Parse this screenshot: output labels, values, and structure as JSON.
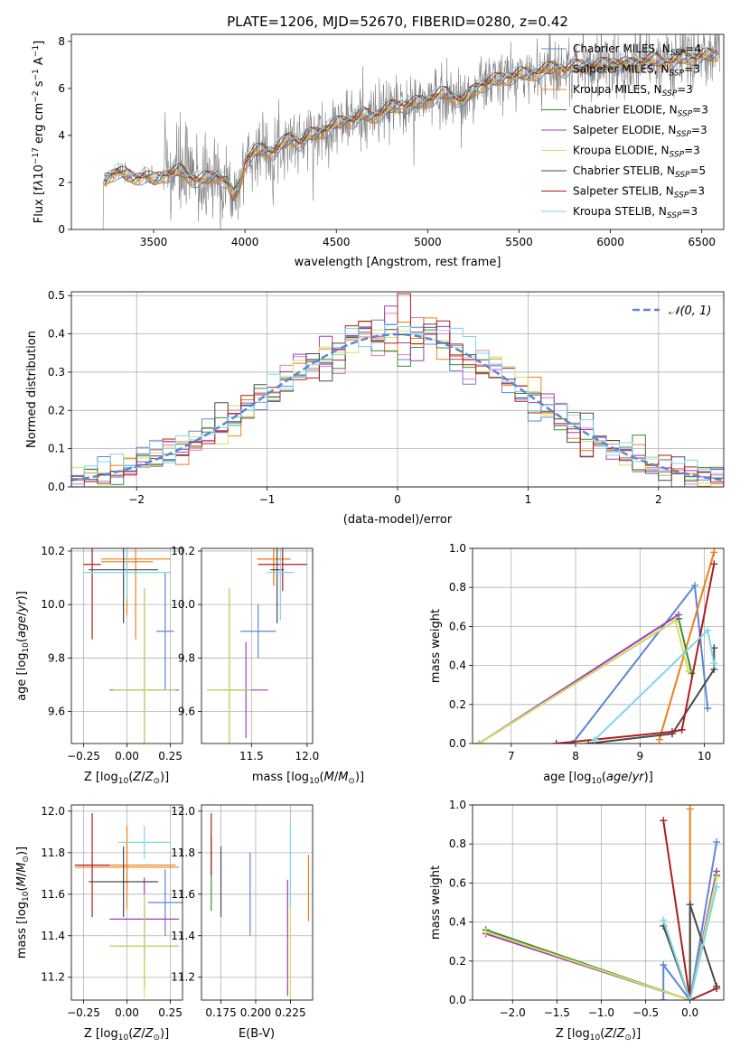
{
  "series_names": [
    "Chabrier MILES",
    "Salpeter MILES",
    "Kroupa MILES",
    "Chabrier ELODIE",
    "Salpeter ELODIE",
    "Kroupa ELODIE",
    "Chabrier STELIB",
    "Salpeter STELIB",
    "Kroupa STELIB"
  ],
  "series_colors": [
    "#5b86d6",
    "#ed7f1a",
    "#ed7f1a",
    "#3e8a3a",
    "#a23db8",
    "#d6e060",
    "#4a4a4a",
    "#b01c1c",
    "#7ad7ea"
  ],
  "chart_data": [
    {
      "id": "spectrum",
      "type": "line",
      "title": "PLATE=1206, MJD=52670, FIBERID=0280, z=0.42",
      "xlabel": "wavelength [Angstrom, rest frame]",
      "ylabel": "Flux [f_λ 10^-17 erg cm^-2 s^-1 A^-1]",
      "xlim": [
        3050,
        6620
      ],
      "ylim": [
        0,
        8.3
      ],
      "xticks": [
        3500,
        4000,
        4500,
        5000,
        5500,
        6000,
        6500
      ],
      "yticks": [
        0,
        2,
        4,
        6,
        8
      ],
      "legend": [
        "Chabrier MILES, N_SSP=4",
        "Salpeter MILES, N_SSP=3",
        "Kroupa MILES, N_SSP=3",
        "Chabrier ELODIE, N_SSP=3",
        "Salpeter ELODIE, N_SSP=3",
        "Kroupa ELODIE, N_SSP=3",
        "Chabrier STELIB, N_SSP=5",
        "Salpeter STELIB, N_SSP=3",
        "Kroupa STELIB, N_SSP=3"
      ],
      "legend_position": "right",
      "model_x": [
        3230,
        3260,
        3300,
        3350,
        3400,
        3450,
        3500,
        3550,
        3600,
        3650,
        3700,
        3750,
        3800,
        3850,
        3900,
        3934,
        3968,
        4000,
        4050,
        4100,
        4150,
        4200,
        4250,
        4300,
        4350,
        4400,
        4450,
        4500,
        4550,
        4600,
        4650,
        4700,
        4750,
        4800,
        4850,
        4900,
        4950,
        5000,
        5050,
        5100,
        5150,
        5200,
        5250,
        5300,
        5350,
        5400,
        5450,
        5500,
        5550,
        5600,
        5650,
        5700,
        5750,
        5800,
        5850,
        5900,
        5950,
        6000,
        6050,
        6100,
        6150,
        6200,
        6250,
        6300,
        6350,
        6400,
        6450,
        6500,
        6550,
        6600
      ],
      "model_y": [
        2.1,
        2.3,
        2.5,
        2.3,
        2.2,
        2.3,
        2.1,
        2.3,
        2.4,
        2.5,
        2.2,
        2.1,
        2.2,
        2.3,
        2.0,
        1.4,
        1.8,
        2.9,
        3.3,
        3.4,
        3.3,
        3.6,
        3.9,
        3.7,
        4.0,
        4.1,
        4.3,
        4.5,
        4.6,
        4.7,
        4.9,
        4.8,
        5.0,
        5.2,
        5.3,
        5.3,
        5.4,
        5.5,
        5.7,
        5.8,
        5.6,
        5.5,
        5.9,
        6.2,
        6.3,
        6.4,
        6.5,
        6.6,
        6.6,
        6.7,
        6.8,
        6.9,
        6.8,
        6.9,
        7.0,
        6.9,
        7.0,
        7.1,
        7.1,
        7.0,
        7.1,
        7.2,
        7.2,
        7.1,
        7.2,
        7.3,
        7.3,
        7.4,
        7.4,
        7.5
      ],
      "observed_noise_amplitude": 1.2
    },
    {
      "id": "residuals",
      "type": "histogram",
      "xlabel": "(data-model)/error",
      "ylabel": "Normed distribution",
      "xlim": [
        -2.5,
        2.5
      ],
      "ylim": [
        0,
        0.51
      ],
      "xticks": [
        -2,
        -1,
        0,
        1,
        2
      ],
      "yticks": [
        0.0,
        0.1,
        0.2,
        0.3,
        0.4,
        0.5
      ],
      "legend": [
        "𝒩(0, 1)"
      ],
      "legend_position": "top-right",
      "bin_width": 0.1,
      "reference": "normal pdf mean 0 sd 1"
    },
    {
      "id": "age-vs-Z",
      "type": "scatter",
      "xlabel": "Z [log10(Z/Z☉)]",
      "ylabel": "age  [log10(age/yr)]",
      "xlim": [
        -0.32,
        0.32
      ],
      "ylim": [
        9.48,
        10.21
      ],
      "xticks": [
        -0.25,
        0.0,
        0.25
      ],
      "xtick_labels": [
        "−0.25",
        "0.00",
        "0.25"
      ],
      "yticks": [
        9.6,
        9.8,
        10.0,
        10.2
      ],
      "points": [
        {
          "series": 0,
          "x": 0.22,
          "y": 9.9,
          "xerr": 0.05,
          "yerr": 0.22
        },
        {
          "series": 1,
          "x": 0.05,
          "y": 10.17,
          "xerr": 0.2,
          "yerr": 0.3
        },
        {
          "series": 2,
          "x": 0.0,
          "y": 10.16,
          "xerr": 0.15,
          "yerr": 0.2
        },
        {
          "series": 3,
          "x": 0.1,
          "y": 9.68,
          "xerr": 0.2,
          "yerr": 0.16
        },
        {
          "series": 4,
          "x": 0.1,
          "y": 9.68,
          "xerr": 0.18,
          "yerr": 0.38
        },
        {
          "series": 5,
          "x": 0.1,
          "y": 9.68,
          "xerr": 0.18,
          "yerr": 0.38
        },
        {
          "series": 6,
          "x": -0.02,
          "y": 10.13,
          "xerr": 0.2,
          "yerr": 0.2
        },
        {
          "series": 7,
          "x": -0.2,
          "y": 10.15,
          "xerr": 0.05,
          "yerr": 0.28
        },
        {
          "series": 8,
          "x": 0.0,
          "y": 10.12,
          "xerr": 0.25,
          "yerr": 0.1
        }
      ]
    },
    {
      "id": "age-vs-mass",
      "type": "scatter",
      "xlabel": "mass [log10(M/M☉)]",
      "ylabel": "",
      "xlim": [
        11.05,
        12.05
      ],
      "ylim": [
        9.48,
        10.21
      ],
      "xticks": [
        11.5,
        12.0
      ],
      "xtick_labels": [
        "11.5",
        "12.0"
      ],
      "yticks": [
        9.6,
        9.8,
        10.0,
        10.2
      ],
      "points": [
        {
          "series": 0,
          "x": 11.56,
          "y": 9.9,
          "xerr": 0.16,
          "yerr": 0.1
        },
        {
          "series": 1,
          "x": 11.7,
          "y": 10.17,
          "xerr": 0.15,
          "yerr": 0.1
        },
        {
          "series": 2,
          "x": 11.7,
          "y": 10.17,
          "xerr": 0.15,
          "yerr": 0.1
        },
        {
          "series": 3,
          "x": 11.3,
          "y": 9.68,
          "xerr": 0.2,
          "yerr": 0.38
        },
        {
          "series": 4,
          "x": 11.45,
          "y": 9.68,
          "xerr": 0.2,
          "yerr": 0.18
        },
        {
          "series": 5,
          "x": 11.3,
          "y": 9.68,
          "xerr": 0.2,
          "yerr": 0.38
        },
        {
          "series": 6,
          "x": 11.73,
          "y": 10.13,
          "xerr": 0.06,
          "yerr": 0.2
        },
        {
          "series": 7,
          "x": 11.78,
          "y": 10.15,
          "xerr": 0.22,
          "yerr": 0.1
        },
        {
          "series": 8,
          "x": 11.76,
          "y": 10.12,
          "xerr": 0.12,
          "yerr": 0.18
        }
      ]
    },
    {
      "id": "weight-vs-age",
      "type": "line",
      "xlabel": "age  [log10(age/yr)]",
      "ylabel": "mass weight",
      "xlim": [
        6.4,
        10.3
      ],
      "ylim": [
        0,
        1.0
      ],
      "xticks": [
        7,
        8,
        9,
        10
      ],
      "yticks": [
        0.0,
        0.2,
        0.4,
        0.6,
        0.8,
        1.0
      ],
      "series": [
        {
          "color": 0,
          "x": [
            7.95,
            9.85,
            10.05
          ],
          "y": [
            0.0,
            0.81,
            0.18
          ]
        },
        {
          "color": 1,
          "x": [
            9.3,
            10.15
          ],
          "y": [
            0.02,
            0.98
          ]
        },
        {
          "color": 3,
          "x": [
            6.5,
            9.6,
            9.8
          ],
          "y": [
            0.0,
            0.64,
            0.36
          ]
        },
        {
          "color": 4,
          "x": [
            6.5,
            9.6
          ],
          "y": [
            0.0,
            0.66
          ]
        },
        {
          "color": 5,
          "x": [
            6.5,
            9.55,
            9.75
          ],
          "y": [
            0.0,
            0.63,
            0.37
          ]
        },
        {
          "color": 6,
          "x": [
            8.2,
            9.5,
            10.15,
            10.15
          ],
          "y": [
            0.0,
            0.05,
            0.38,
            0.49
          ]
        },
        {
          "color": 7,
          "x": [
            7.7,
            9.5,
            9.65,
            10.15
          ],
          "y": [
            0.0,
            0.06,
            0.07,
            0.92
          ]
        },
        {
          "color": 8,
          "x": [
            8.3,
            10.05,
            10.15
          ],
          "y": [
            0.02,
            0.58,
            0.41
          ]
        }
      ]
    },
    {
      "id": "mass-vs-Z",
      "type": "scatter",
      "xlabel": "Z [log10(Z/Z☉)]",
      "ylabel": "mass [log10(M/M☉)]",
      "xlim": [
        -0.32,
        0.32
      ],
      "ylim": [
        11.09,
        12.03
      ],
      "xticks": [
        -0.25,
        0.0,
        0.25
      ],
      "xtick_labels": [
        "−0.25",
        "0.00",
        "0.25"
      ],
      "yticks": [
        11.2,
        11.4,
        11.6,
        11.8,
        12.0
      ],
      "points": [
        {
          "series": 0,
          "x": 0.22,
          "y": 11.56,
          "xerr": 0.1,
          "yerr": 0.16
        },
        {
          "series": 1,
          "x": 0.0,
          "y": 11.74,
          "xerr": 0.28,
          "yerr": 0.12
        },
        {
          "series": 2,
          "x": 0.0,
          "y": 11.73,
          "xerr": 0.3,
          "yerr": 0.2
        },
        {
          "series": 3,
          "x": 0.1,
          "y": 11.35,
          "xerr": 0.2,
          "yerr": 0.2
        },
        {
          "series": 4,
          "x": 0.1,
          "y": 11.48,
          "xerr": 0.2,
          "yerr": 0.2
        },
        {
          "series": 5,
          "x": 0.1,
          "y": 11.35,
          "xerr": 0.2,
          "yerr": 0.25
        },
        {
          "series": 6,
          "x": -0.02,
          "y": 11.66,
          "xerr": 0.2,
          "yerr": 0.17
        },
        {
          "series": 7,
          "x": -0.2,
          "y": 11.74,
          "xerr": 0.1,
          "yerr": 0.25
        },
        {
          "series": 8,
          "x": 0.1,
          "y": 11.85,
          "xerr": 0.15,
          "yerr": 0.08
        }
      ]
    },
    {
      "id": "mass-vs-EBV",
      "type": "scatter",
      "xlabel": "E(B-V)",
      "ylabel": "",
      "xlim": [
        0.161,
        0.241
      ],
      "ylim": [
        11.09,
        12.03
      ],
      "xticks": [
        0.175,
        0.2,
        0.225
      ],
      "xtick_labels": [
        "0.175",
        "0.200",
        "0.225"
      ],
      "yticks": [
        11.2,
        11.4,
        11.6,
        11.8,
        12.0
      ],
      "points": [
        {
          "series": 0,
          "x": 0.196,
          "y": 11.6,
          "xerr": 0,
          "yerr": 0.2
        },
        {
          "series": 2,
          "x": 0.238,
          "y": 11.63,
          "xerr": 0,
          "yerr": 0.16
        },
        {
          "series": 3,
          "x": 0.168,
          "y": 11.7,
          "xerr": 0,
          "yerr": 0.18
        },
        {
          "series": 4,
          "x": 0.223,
          "y": 11.39,
          "xerr": 0,
          "yerr": 0.28
        },
        {
          "series": 5,
          "x": 0.225,
          "y": 11.35,
          "xerr": 0,
          "yerr": 0.25
        },
        {
          "series": 6,
          "x": 0.175,
          "y": 11.66,
          "xerr": 0,
          "yerr": 0.17
        },
        {
          "series": 7,
          "x": 0.168,
          "y": 11.84,
          "xerr": 0,
          "yerr": 0.15
        },
        {
          "series": 8,
          "x": 0.225,
          "y": 11.74,
          "xerr": 0,
          "yerr": 0.2
        }
      ]
    },
    {
      "id": "weight-vs-Z",
      "type": "line",
      "xlabel": "Z [log10(Z/Z☉)]",
      "ylabel": "mass weight",
      "xlim": [
        -2.45,
        0.38
      ],
      "ylim": [
        0,
        1.0
      ],
      "xticks": [
        -2.0,
        -1.5,
        -1.0,
        -0.5,
        0.0
      ],
      "xtick_labels": [
        "−2.0",
        "−1.5",
        "−1.0",
        "−0.5",
        "0.0"
      ],
      "yticks": [
        0.0,
        0.2,
        0.4,
        0.6,
        0.8,
        1.0
      ],
      "series": [
        {
          "color": 0,
          "x": [
            -0.3,
            -0.3,
            0.0,
            0.3
          ],
          "y": [
            0.0,
            0.18,
            0.0,
            0.81
          ]
        },
        {
          "color": 1,
          "x": [
            0.0,
            0.0
          ],
          "y": [
            0.0,
            0.98
          ]
        },
        {
          "color": 3,
          "x": [
            -2.3,
            0.0,
            0.3
          ],
          "y": [
            0.36,
            0.0,
            0.64
          ]
        },
        {
          "color": 4,
          "x": [
            -2.3,
            0.0,
            0.3
          ],
          "y": [
            0.34,
            0.0,
            0.66
          ]
        },
        {
          "color": 5,
          "x": [
            -2.3,
            0.0,
            0.3
          ],
          "y": [
            0.35,
            0.0,
            0.63
          ]
        },
        {
          "color": 6,
          "x": [
            -0.3,
            0.0,
            0.0,
            0.3
          ],
          "y": [
            0.38,
            0.0,
            0.49,
            0.07
          ]
        },
        {
          "color": 7,
          "x": [
            -0.3,
            0.0,
            0.3
          ],
          "y": [
            0.92,
            0.0,
            0.06
          ]
        },
        {
          "color": 8,
          "x": [
            -0.3,
            0.0,
            0.3
          ],
          "y": [
            0.41,
            0.0,
            0.58
          ]
        }
      ]
    }
  ]
}
